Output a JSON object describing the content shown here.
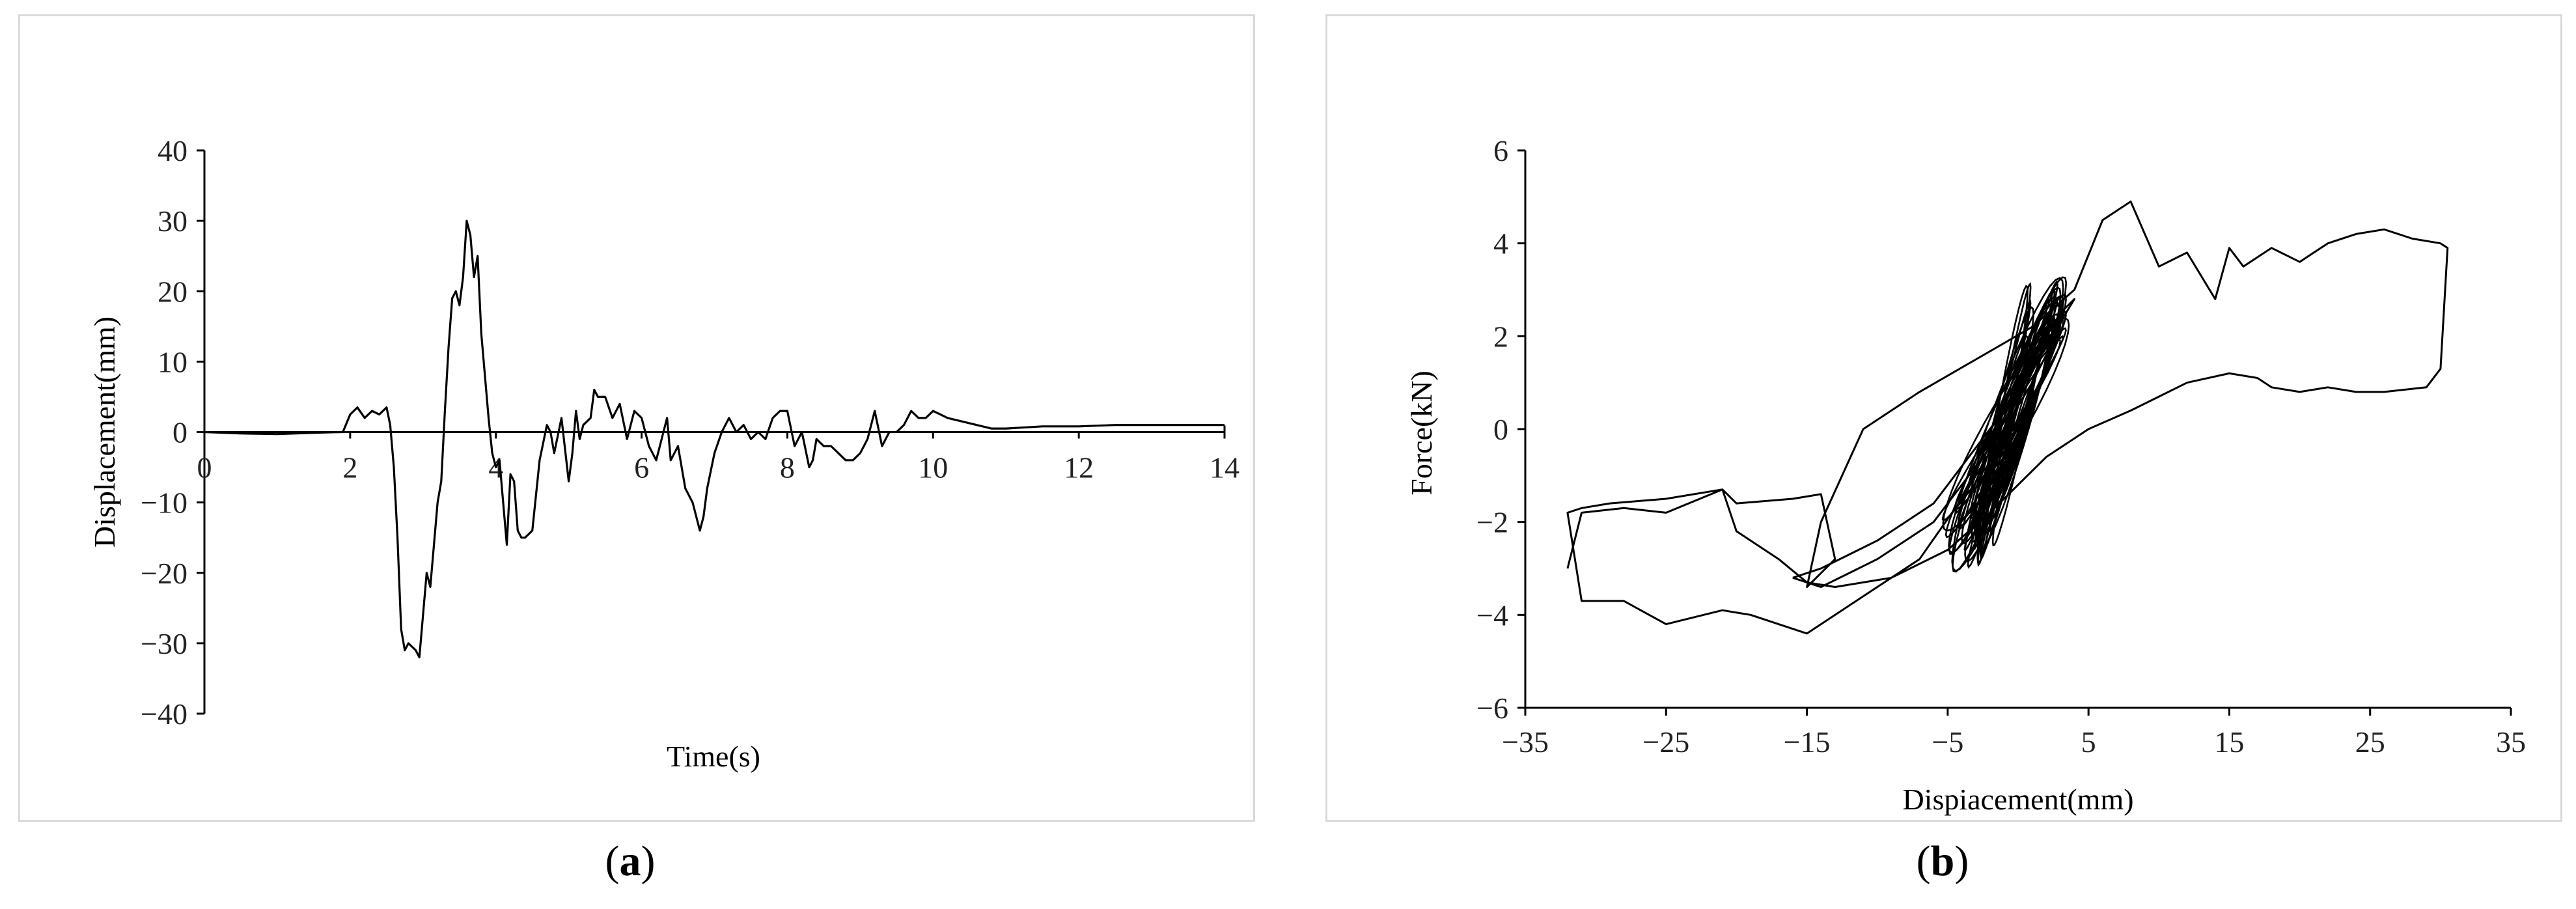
{
  "chart_data": [
    {
      "type": "line",
      "panel_label": "a",
      "xlabel": "Time(s)",
      "ylabel": "Displacement(mm)",
      "xlim": [
        0,
        14
      ],
      "ylim": [
        -40,
        40
      ],
      "xticks": [
        0,
        2,
        4,
        6,
        8,
        10,
        12,
        14
      ],
      "yticks": [
        40,
        30,
        20,
        10,
        0,
        -10,
        -20,
        -30,
        -40
      ],
      "xtick_labels": [
        "0",
        "2",
        "4",
        "6",
        "8",
        "10",
        "12",
        "14"
      ],
      "ytick_labels": [
        "40",
        "30",
        "20",
        "10",
        "0",
        "−10",
        "−20",
        "−30",
        "−40"
      ],
      "grid": false,
      "series": [
        {
          "x": [
            0,
            0.5,
            1.0,
            1.5,
            1.9,
            2.0,
            2.1,
            2.2,
            2.3,
            2.4,
            2.5,
            2.55,
            2.6,
            2.65,
            2.7,
            2.75,
            2.8,
            2.9,
            2.95,
            3.0,
            3.05,
            3.1,
            3.2,
            3.25,
            3.3,
            3.35,
            3.4,
            3.45,
            3.5,
            3.55,
            3.6,
            3.65,
            3.7,
            3.75,
            3.8,
            3.85,
            3.9,
            3.95,
            4.0,
            4.05,
            4.1,
            4.15,
            4.2,
            4.25,
            4.3,
            4.35,
            4.4,
            4.5,
            4.6,
            4.7,
            4.75,
            4.8,
            4.9,
            5.0,
            5.05,
            5.1,
            5.15,
            5.2,
            5.3,
            5.35,
            5.4,
            5.5,
            5.6,
            5.7,
            5.8,
            5.9,
            6.0,
            6.1,
            6.2,
            6.3,
            6.35,
            6.4,
            6.5,
            6.6,
            6.65,
            6.7,
            6.8,
            6.85,
            6.9,
            7.0,
            7.1,
            7.2,
            7.3,
            7.4,
            7.5,
            7.6,
            7.7,
            7.8,
            7.9,
            8.0,
            8.1,
            8.2,
            8.3,
            8.35,
            8.4,
            8.5,
            8.6,
            8.7,
            8.8,
            8.9,
            9.0,
            9.1,
            9.2,
            9.3,
            9.4,
            9.5,
            9.6,
            9.7,
            9.8,
            9.9,
            10.0,
            10.2,
            10.4,
            10.6,
            10.8,
            11.0,
            11.5,
            12.0,
            12.5,
            13.0,
            13.5,
            14.0
          ],
          "y": [
            0,
            -0.2,
            -0.3,
            -0.1,
            0,
            2.5,
            3.5,
            2,
            3,
            2.5,
            3.5,
            1,
            -5,
            -15,
            -28,
            -31,
            -30,
            -31,
            -32,
            -26,
            -20,
            -22,
            -10,
            -7,
            3,
            12,
            19,
            20,
            18,
            22,
            30,
            28,
            22,
            25,
            14,
            8,
            2,
            -3,
            -5,
            -4,
            -10,
            -16,
            -6,
            -7,
            -14,
            -15,
            -15,
            -14,
            -4,
            1,
            0,
            -3,
            2,
            -7,
            -3,
            3,
            -1,
            1,
            2,
            6,
            5,
            5,
            2,
            4,
            -1,
            3,
            2,
            -2,
            -4,
            0,
            2,
            -4,
            -2,
            -8,
            -9,
            -10,
            -14,
            -12,
            -8,
            -3,
            0,
            2,
            0,
            1,
            -1,
            0,
            -1,
            2,
            3,
            3,
            -2,
            0,
            -5,
            -4,
            -1,
            -2,
            -2,
            -3,
            -4,
            -4,
            -3,
            -1,
            3,
            -2,
            0,
            0,
            1,
            3,
            2,
            2,
            3,
            2,
            1.5,
            1,
            0.5,
            0.5,
            0.8,
            0.8,
            1.0,
            1.0,
            1.0,
            1.0
          ]
        }
      ]
    },
    {
      "type": "line",
      "panel_label": "b",
      "xlabel": "Dispiacement(mm)",
      "ylabel": "Force(kN)",
      "xlim": [
        -35,
        35
      ],
      "ylim": [
        -6,
        6
      ],
      "xticks": [
        -35,
        -25,
        -15,
        -5,
        5,
        15,
        25,
        35
      ],
      "yticks": [
        6,
        4,
        2,
        0,
        -2,
        -4,
        -6
      ],
      "xtick_labels": [
        "−35",
        "−25",
        "−15",
        "−5",
        "5",
        "15",
        "25",
        "35"
      ],
      "ytick_labels": [
        "6",
        "4",
        "2",
        "0",
        "−2",
        "−4",
        "−6"
      ],
      "grid": false,
      "series": [
        {
          "x": [
            -2,
            -4,
            -7,
            -11,
            -15,
            -19,
            -21,
            -25,
            -28,
            -31,
            -32,
            -31,
            -29,
            -25,
            -21,
            -20,
            -16,
            -14,
            -13,
            -15,
            -14,
            -11,
            -7,
            -3,
            1,
            4,
            6,
            8,
            10,
            12,
            14,
            15,
            16,
            18,
            20,
            22,
            24,
            26,
            28,
            30,
            30.5,
            30,
            29,
            26,
            24,
            22,
            20,
            18,
            17,
            15,
            12,
            10,
            8,
            5,
            2,
            0,
            -2,
            -5,
            -9,
            -13,
            -15,
            -17,
            -20,
            -21,
            -25,
            -28,
            -31,
            -32
          ],
          "y": [
            -0.5,
            -1.5,
            -2.8,
            -3.6,
            -4.4,
            -4,
            -3.9,
            -4.2,
            -3.7,
            -3.7,
            -1.8,
            -1.7,
            -1.6,
            -1.5,
            -1.3,
            -1.6,
            -1.5,
            -1.4,
            -2.8,
            -3.4,
            -2,
            0,
            0.8,
            1.5,
            2.2,
            3,
            4.5,
            4.9,
            3.5,
            3.8,
            2.8,
            3.9,
            3.5,
            3.9,
            3.6,
            4,
            4.2,
            4.3,
            4.1,
            4,
            3.9,
            1.3,
            0.9,
            0.8,
            0.8,
            0.9,
            0.8,
            0.9,
            1.1,
            1.2,
            1.0,
            0.7,
            0.4,
            0.0,
            -0.6,
            -1.2,
            -1.8,
            -2.6,
            -3.2,
            -3.4,
            -3.3,
            -2.8,
            -2.2,
            -1.3,
            -1.8,
            -1.7,
            -1.8,
            -3.0
          ]
        },
        {
          "x": [
            -16,
            -14,
            -12,
            -10,
            -8,
            -6,
            -5,
            -4,
            -3,
            -2,
            -1,
            0,
            1,
            2,
            3,
            4,
            3,
            2,
            1,
            0,
            -1,
            -2,
            -3,
            -4,
            -5,
            -6,
            -8,
            -10,
            -12,
            -14,
            -16
          ],
          "y": [
            -3.2,
            -3.4,
            -3.1,
            -2.8,
            -2.4,
            -2.0,
            -1.6,
            -1.2,
            -0.8,
            -0.4,
            0.0,
            0.5,
            1.0,
            1.6,
            2.3,
            2.8,
            2.5,
            2.0,
            1.4,
            0.9,
            0.4,
            0.0,
            -0.4,
            -0.8,
            -1.2,
            -1.6,
            -2.0,
            -2.4,
            -2.7,
            -3.0,
            -3.2
          ]
        }
      ],
      "dense_loops": {
        "x_range": [
          -5,
          4
        ],
        "y_range": [
          -3.0,
          3.2
        ],
        "count": 34
      }
    }
  ],
  "captions": {
    "a": "a",
    "b": "b"
  }
}
